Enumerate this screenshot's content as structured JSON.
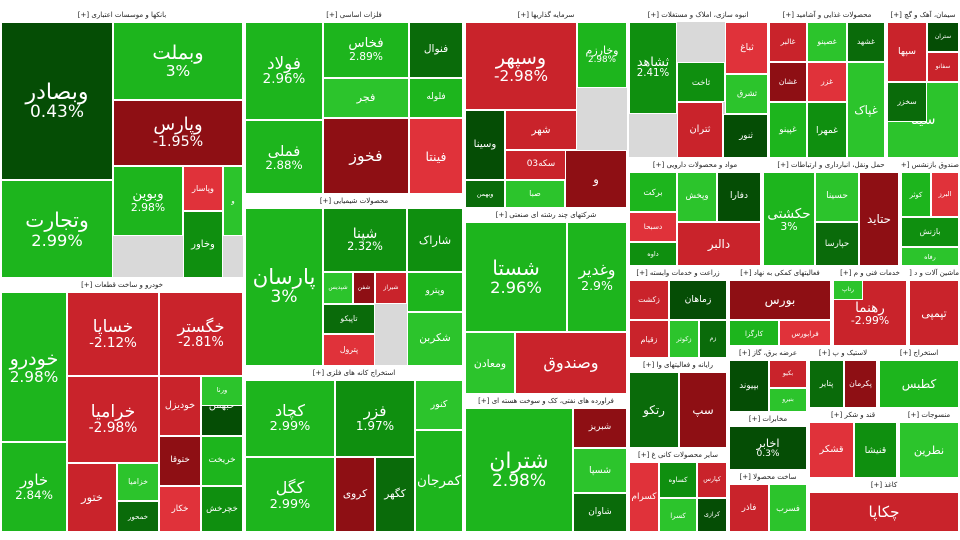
{
  "colors": {
    "up_strong": "#1db51d",
    "up": "#2cc42c",
    "up_mid": "#0f8f0f",
    "up_dark": "#0a6b0a",
    "up_deep": "#054d05",
    "down": "#c9232b",
    "down_light": "#e0323a",
    "down_dark": "#8e0f14",
    "down_deep": "#5c0a0d",
    "neutral": "#d9d9d9"
  },
  "chart_data": {
    "type": "treemap",
    "unit": "%",
    "sectors": [
      {
        "id": "banks",
        "name": "بانکها و موسسات اعتباری [+]",
        "tiles": [
          {
            "symbol": "وبصادر",
            "change": 0.43
          },
          {
            "symbol": "وتجارت",
            "change": 2.99
          },
          {
            "symbol": "وبملت",
            "change": 3
          },
          {
            "symbol": "وپارس",
            "change": -1.95
          },
          {
            "symbol": "وبوین",
            "change": 2.98
          },
          {
            "symbol": "وپاسار",
            "change": null
          },
          {
            "symbol": "وخاور",
            "change": null
          },
          {
            "symbol": "و",
            "change": null
          }
        ]
      },
      {
        "id": "metals",
        "name": "فلزات اساسی [+]",
        "tiles": [
          {
            "symbol": "فولاد",
            "change": 2.96
          },
          {
            "symbol": "فملی",
            "change": 2.88
          },
          {
            "symbol": "فخاس",
            "change": 2.89
          },
          {
            "symbol": "فجر",
            "change": null
          },
          {
            "symbol": "فنوال",
            "change": null
          },
          {
            "symbol": "فخوز",
            "change": null
          },
          {
            "symbol": "فلوله",
            "change": null
          },
          {
            "symbol": "فینتا",
            "change": null
          }
        ]
      },
      {
        "id": "investment",
        "name": "سرمایه گذاریها [+]",
        "tiles": [
          {
            "symbol": "وسپهر",
            "change": -2.98
          },
          {
            "symbol": "وخارزم",
            "change": 2.98
          },
          {
            "symbol": "شهر",
            "change": null
          },
          {
            "symbol": "وسینا",
            "change": null
          },
          {
            "symbol": "سکه03",
            "change": null
          },
          {
            "symbol": "صبا",
            "change": null
          },
          {
            "symbol": "وبهمن",
            "change": null
          },
          {
            "symbol": "و",
            "change": null
          }
        ]
      },
      {
        "id": "construction",
        "name": "انبوه سازی، املاک و مستغلات [+]",
        "tiles": [
          {
            "symbol": "ثشاهد",
            "change": 2.41
          },
          {
            "symbol": "ثباغ",
            "change": null
          },
          {
            "symbol": "ثاخت",
            "change": null
          },
          {
            "symbol": "ثشرق",
            "change": null
          },
          {
            "symbol": "ثتران",
            "change": null
          },
          {
            "symbol": "ثنور",
            "change": null
          }
        ]
      },
      {
        "id": "food",
        "name": "محصولات غذایی و آشامید [+]",
        "tiles": [
          {
            "symbol": "غالبر",
            "change": null
          },
          {
            "symbol": "غصینو",
            "change": null
          },
          {
            "symbol": "غشهد",
            "change": null
          },
          {
            "symbol": "غشان",
            "change": null
          },
          {
            "symbol": "غپینو",
            "change": null
          },
          {
            "symbol": "غزر",
            "change": null
          },
          {
            "symbol": "غمهرا",
            "change": null
          },
          {
            "symbol": "غپاک",
            "change": null
          }
        ]
      },
      {
        "id": "cement",
        "name": "سیمان، آهک و گچ [+]",
        "tiles": [
          {
            "symbol": "سپها",
            "change": null
          },
          {
            "symbol": "ستران",
            "change": null
          },
          {
            "symbol": "سفانو",
            "change": null
          },
          {
            "symbol": "سینا",
            "change": null
          },
          {
            "symbol": "سخزر",
            "change": null
          }
        ]
      },
      {
        "id": "auto",
        "name": "خودرو و ساخت قطعات [+]",
        "tiles": [
          {
            "symbol": "خودرو",
            "change": 2.98
          },
          {
            "symbol": "خساپا",
            "change": -2.12
          },
          {
            "symbol": "خگستر",
            "change": -2.81
          },
          {
            "symbol": "خراميا",
            "change": -2.98
          },
          {
            "symbol": "خاور",
            "change": 2.84
          },
          {
            "symbol": "خودیزل",
            "change": null
          },
          {
            "symbol": "خبهمن",
            "change": null
          },
          {
            "symbol": "ختور",
            "change": null
          },
          {
            "symbol": "خزامیا",
            "change": null
          },
          {
            "symbol": "خمحور",
            "change": null
          },
          {
            "symbol": "ختوقا",
            "change": null
          },
          {
            "symbol": "خریخت",
            "change": null
          },
          {
            "symbol": "خکار",
            "change": null
          },
          {
            "symbol": "خچرخش",
            "change": null
          },
          {
            "symbol": "ورنا",
            "change": null
          }
        ]
      },
      {
        "id": "chemical",
        "name": "محصولات شیمیایی [+]",
        "tiles": [
          {
            "symbol": "پارسان",
            "change": 3
          },
          {
            "symbol": "شپنا",
            "change": 2.32
          },
          {
            "symbol": "شیراز",
            "change": null
          },
          {
            "symbol": "شپدیس",
            "change": null
          },
          {
            "symbol": "تاپیکو",
            "change": null
          },
          {
            "symbol": "شفن",
            "change": null
          },
          {
            "symbol": "وپترو",
            "change": null
          },
          {
            "symbol": "پترول",
            "change": null
          },
          {
            "symbol": "شاراک",
            "change": null
          },
          {
            "symbol": "شکربن",
            "change": null
          }
        ]
      },
      {
        "id": "mining",
        "name": "استخراج کانه های فلزی [+]",
        "tiles": [
          {
            "symbol": "کچاد",
            "change": 2.99
          },
          {
            "symbol": "کگل",
            "change": 2.99
          },
          {
            "symbol": "فزر",
            "change": 1.97
          },
          {
            "symbol": "کنور",
            "change": null
          },
          {
            "symbol": "کگهر",
            "change": null
          },
          {
            "symbol": "کروی",
            "change": null
          },
          {
            "symbol": "کمرجان",
            "change": null
          }
        ]
      },
      {
        "id": "diversified",
        "name": "شرکتهای چند رشته ای صنعتی [+]",
        "tiles": [
          {
            "symbol": "شستا",
            "change": 2.96
          },
          {
            "symbol": "وغدیر",
            "change": 2.9
          },
          {
            "symbol": "ومعادن",
            "change": null
          },
          {
            "symbol": "وصندوق",
            "change": null
          }
        ]
      },
      {
        "id": "oil",
        "name": "فراورده های نفتی، کک و سوخت هسته ای [+]",
        "tiles": [
          {
            "symbol": "شتران",
            "change": 2.98
          },
          {
            "symbol": "شبندر",
            "change": null
          },
          {
            "symbol": "شسپا",
            "change": null
          },
          {
            "symbol": "شاوان",
            "change": null
          },
          {
            "symbol": "شبریز",
            "change": null
          }
        ]
      },
      {
        "id": "pharma",
        "name": "مواد و محصولات دارویی [+]",
        "tiles": [
          {
            "symbol": "برکت",
            "change": null
          },
          {
            "symbol": "دسبحا",
            "change": null
          },
          {
            "symbol": "داوه",
            "change": null
          },
          {
            "symbol": "وپخش",
            "change": null
          },
          {
            "symbol": "دالبر",
            "change": null
          },
          {
            "symbol": "دفارا",
            "change": null
          }
        ]
      },
      {
        "id": "transport",
        "name": "حمل ونقل، انبارداری و ارتباطات [+]",
        "tiles": [
          {
            "symbol": "حکشتی",
            "change": 3
          },
          {
            "symbol": "حسینا",
            "change": null
          },
          {
            "symbol": "حپارسا",
            "change": null
          },
          {
            "symbol": "حتاید",
            "change": null
          }
        ]
      },
      {
        "id": "etf",
        "name": "صندوق بازنشس [+]",
        "tiles": [
          {
            "symbol": "کوثر",
            "change": null
          },
          {
            "symbol": "البرز",
            "change": null
          },
          {
            "symbol": "بازنش",
            "change": null
          },
          {
            "symbol": "رفاه",
            "change": null
          }
        ]
      },
      {
        "id": "agri",
        "name": "زراعت و خدمات وابسته [+]",
        "tiles": [
          {
            "symbol": "زکشت",
            "change": null
          },
          {
            "symbol": "زماهان",
            "change": null
          },
          {
            "symbol": "زقیام",
            "change": null
          },
          {
            "symbol": "زکوثر",
            "change": null
          },
          {
            "symbol": "زم",
            "change": null
          }
        ]
      },
      {
        "id": "support",
        "name": "فعالیتهای کمکی به نهاد [+]",
        "tiles": [
          {
            "symbol": "بورس",
            "change": null
          },
          {
            "symbol": "کارگزا",
            "change": null
          },
          {
            "symbol": "فرابورس",
            "change": null
          }
        ]
      },
      {
        "id": "tech",
        "name": "خدمات فنی و م [+]",
        "tiles": [
          {
            "symbol": "رهنما",
            "change": -2.99
          },
          {
            "symbol": "رتاپ",
            "change": null
          }
        ]
      },
      {
        "id": "machinery",
        "name": "ماشین آلات و د [+]",
        "tiles": [
          {
            "symbol": "تپمپی",
            "change": null
          }
        ]
      },
      {
        "id": "electric",
        "name": "عرضه برق، گاز [+]",
        "tiles": [
          {
            "symbol": "بپیوند",
            "change": null
          },
          {
            "symbol": "بکیو",
            "change": null
          },
          {
            "symbol": "بنیرو",
            "change": null
          }
        ]
      },
      {
        "id": "computer",
        "name": "رایانه و فعالیتهای وا [+]",
        "tiles": [
          {
            "symbol": "رتکو",
            "change": null
          },
          {
            "symbol": "سپ",
            "change": null
          }
        ]
      },
      {
        "id": "publishing",
        "name": "مخابرات [+]",
        "tiles": [
          {
            "symbol": "اخابر",
            "change": 0.3
          }
        ]
      },
      {
        "id": "ceramic",
        "name": "سایر محصولات کانی غ [+]",
        "tiles": [
          {
            "symbol": "کسرام",
            "change": null
          },
          {
            "symbol": "کساوه",
            "change": null
          },
          {
            "symbol": "کسرا",
            "change": null
          },
          {
            "symbol": "کپارس",
            "change": null
          },
          {
            "symbol": "کرازی",
            "change": null
          }
        ]
      },
      {
        "id": "misc",
        "name": "ساخت محصولا [+]",
        "tiles": [
          {
            "symbol": "فاذر",
            "change": null
          },
          {
            "symbol": "فسرب",
            "change": null
          }
        ]
      },
      {
        "id": "plastic",
        "name": "لاستیک و پ [+]",
        "tiles": [
          {
            "symbol": "پتایر",
            "change": null
          },
          {
            "symbol": "پکرمان",
            "change": null
          }
        ]
      },
      {
        "id": "coal",
        "name": "استخراج [+]",
        "tiles": [
          {
            "symbol": "کطبس",
            "change": null
          }
        ]
      },
      {
        "id": "sugar",
        "name": "قند و شکر [+]",
        "tiles": [
          {
            "symbol": "قشکر",
            "change": null
          },
          {
            "symbol": "قنیشا",
            "change": null
          }
        ]
      },
      {
        "id": "textile",
        "name": "منسوجات [+]",
        "tiles": [
          {
            "symbol": "نطرین",
            "change": null
          }
        ]
      },
      {
        "id": "paper",
        "name": "کاغذ [+]",
        "tiles": [
          {
            "symbol": "چکاپا",
            "change": null
          }
        ]
      }
    ]
  }
}
